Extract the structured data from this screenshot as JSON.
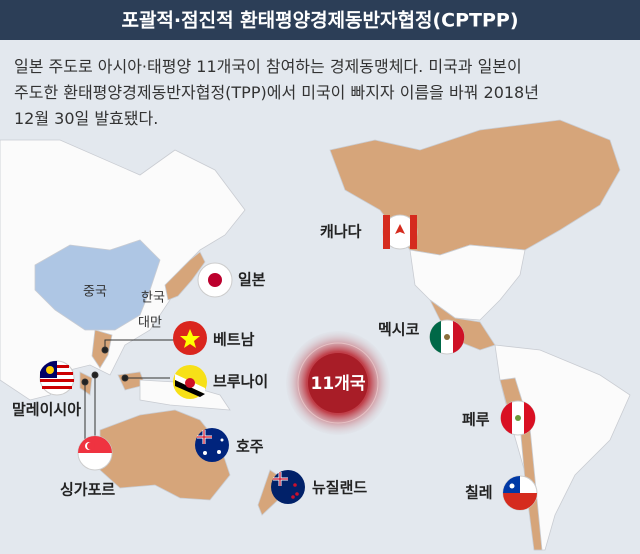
{
  "header": {
    "title": "포괄적·점진적 환태평양경제동반자협정(CPTPP)"
  },
  "description": [
    "일본 주도로 아시아·태평양 11개국이 참여하는 경제동맹체다. 미국과 일본이",
    "주도한 환태평양경제동반자협정(TPP)에서 미국이 빠지자 이름을 바꿔 2018년",
    "12월 30일 발효됐다."
  ],
  "map_labels": {
    "china": "중국",
    "korea": "한국",
    "taiwan": "대만"
  },
  "badge": "11개국",
  "countries": {
    "canada": "캐나다",
    "japan": "일본",
    "vietnam": "베트남",
    "mexico": "멕시코",
    "malaysia": "말레이시아",
    "brunei": "브루나이",
    "peru": "페루",
    "australia": "호주",
    "singapore": "싱가포르",
    "new_zealand": "뉴질랜드",
    "chile": "칠레"
  }
}
